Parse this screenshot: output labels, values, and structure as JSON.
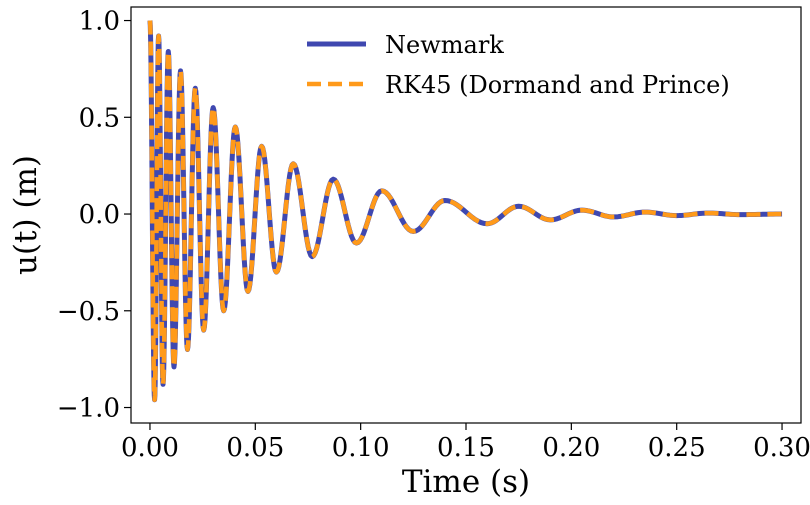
{
  "chart_data": {
    "type": "line",
    "xlabel": "Time (s)",
    "ylabel": "u(t) (m)",
    "xlim": [
      -0.009,
      0.309
    ],
    "ylim": [
      -1.08,
      1.07
    ],
    "xticks": [
      0.0,
      0.05,
      0.1,
      0.15,
      0.2,
      0.25,
      0.3
    ],
    "xtick_labels": [
      "0.00",
      "0.05",
      "0.10",
      "0.15",
      "0.20",
      "0.25",
      "0.30"
    ],
    "yticks": [
      -1.0,
      -0.5,
      0.0,
      0.5,
      1.0
    ],
    "ytick_labels": [
      "−1.0",
      "−0.5",
      "0.0",
      "0.5",
      "1.0"
    ],
    "grid": false,
    "legend_position": "top-right",
    "series": [
      {
        "name": "Newmark",
        "color": "#3f48b0",
        "style": "solid",
        "x": [
          0.0,
          0.0022,
          0.0041,
          0.0062,
          0.0087,
          0.0114,
          0.0145,
          0.0178,
          0.0215,
          0.0255,
          0.03,
          0.035,
          0.0405,
          0.0465,
          0.053,
          0.06,
          0.068,
          0.077,
          0.087,
          0.098,
          0.11,
          0.125,
          0.14,
          0.16,
          0.175,
          0.19,
          0.205,
          0.22,
          0.235,
          0.25,
          0.265,
          0.28,
          0.3
        ],
        "y": [
          1.0,
          -0.96,
          0.92,
          -0.88,
          0.84,
          -0.79,
          0.74,
          -0.7,
          0.65,
          -0.6,
          0.55,
          -0.5,
          0.45,
          -0.4,
          0.35,
          -0.3,
          0.26,
          -0.22,
          0.18,
          -0.15,
          0.12,
          -0.09,
          0.07,
          -0.05,
          0.04,
          -0.03,
          0.02,
          -0.015,
          0.01,
          -0.008,
          0.005,
          -0.003,
          0.0
        ]
      },
      {
        "name": "RK45 (Dormand and Prince)",
        "color": "#ff9a1a",
        "style": "dashed",
        "x": [
          0.0,
          0.0022,
          0.0041,
          0.0062,
          0.0087,
          0.0114,
          0.0145,
          0.0178,
          0.0215,
          0.0255,
          0.03,
          0.035,
          0.0405,
          0.0465,
          0.053,
          0.06,
          0.068,
          0.077,
          0.087,
          0.098,
          0.11,
          0.125,
          0.14,
          0.16,
          0.175,
          0.19,
          0.205,
          0.22,
          0.235,
          0.25,
          0.265,
          0.28,
          0.3
        ],
        "y": [
          1.0,
          -0.96,
          0.92,
          -0.88,
          0.84,
          -0.79,
          0.74,
          -0.7,
          0.65,
          -0.6,
          0.55,
          -0.5,
          0.45,
          -0.4,
          0.35,
          -0.3,
          0.26,
          -0.22,
          0.18,
          -0.15,
          0.12,
          -0.09,
          0.07,
          -0.05,
          0.04,
          -0.03,
          0.02,
          -0.015,
          0.01,
          -0.008,
          0.005,
          -0.003,
          0.0
        ]
      }
    ]
  }
}
